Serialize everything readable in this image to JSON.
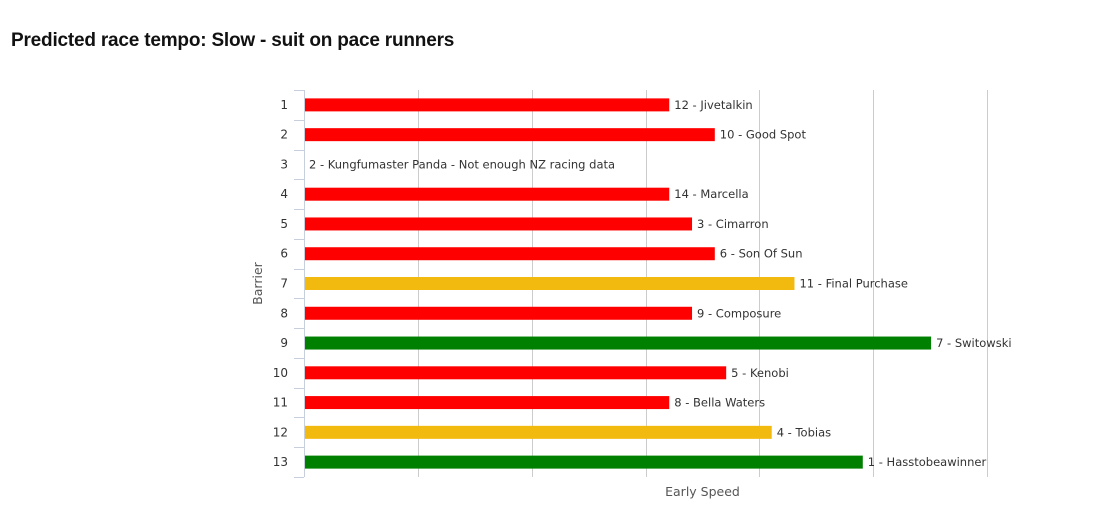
{
  "title": "Predicted race tempo: Slow - suit on pace runners",
  "chart_data": {
    "type": "bar",
    "orientation": "horizontal",
    "xlabel": "Early Speed",
    "ylabel": "Barrier",
    "grid": true,
    "categories": [
      "1",
      "2",
      "3",
      "4",
      "5",
      "6",
      "7",
      "8",
      "9",
      "10",
      "11",
      "12",
      "13"
    ],
    "values": [
      64,
      72,
      0,
      64,
      68,
      72,
      86,
      68,
      110,
      74,
      64,
      82,
      98
    ],
    "labels": [
      "12 - Jivetalkin",
      "10 - Good Spot",
      "2 - Kungfumaster Panda - Not enough NZ racing data",
      "14 - Marcella",
      "3 - Cimarron",
      "6 - Son Of Sun",
      "11 - Final Purchase",
      "9 - Composure",
      "7 - Switowski",
      "5 - Kenobi",
      "8 - Bella Waters",
      "4 - Tobias",
      "1 - Hasstobeawinner"
    ],
    "colors": [
      "#ff0000",
      "#ff0000",
      "#ff0000",
      "#ff0000",
      "#ff0000",
      "#ff0000",
      "#f2b90f",
      "#ff0000",
      "#008000",
      "#ff0000",
      "#ff0000",
      "#f2b90f",
      "#008000"
    ],
    "xlim": [
      0,
      120
    ]
  }
}
